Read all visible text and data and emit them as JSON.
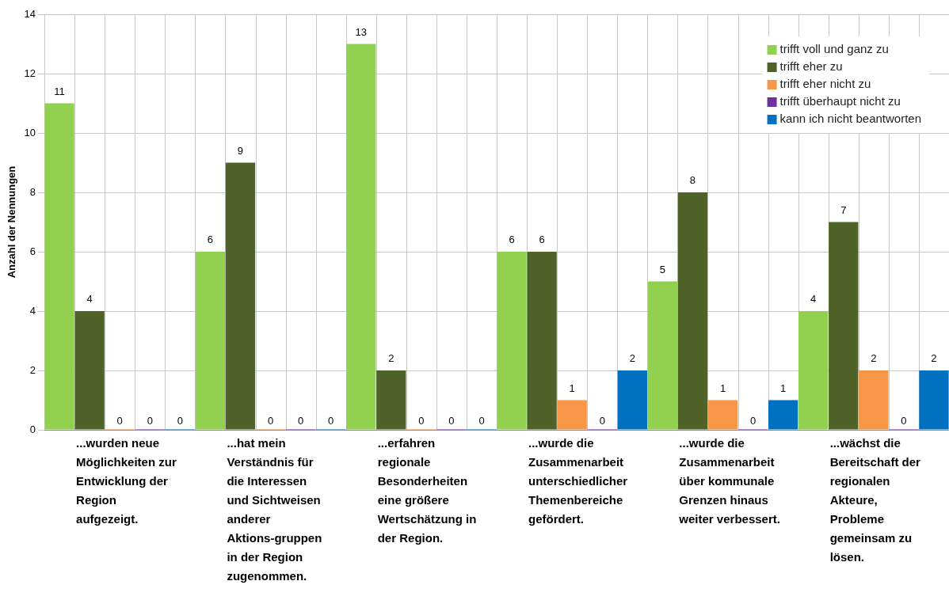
{
  "chart_data": {
    "type": "bar",
    "ylabel": "Anzahl der Nennungen",
    "categories": [
      "...wurden neue Möglichkeiten zur Entwicklung der Region aufgezeigt.",
      "...hat mein Verständnis für die Interessen und Sichtweisen anderer Aktions-gruppen in der Region zugenommen.",
      "...erfahren regionale Besonderheiten eine größere Wertschätzung in der Region.",
      "...wurde die Zusammenarbeit unterschiedlicher Themenbereiche gefördert.",
      "...wurde die Zusammenarbeit über kommunale Grenzen hinaus weiter verbessert.",
      "...wächst die Bereitschaft der regionalen Akteure, Probleme gemeinsam zu lösen."
    ],
    "series": [
      {
        "name": "trifft voll und ganz zu",
        "color": "#92d050",
        "values": [
          11,
          6,
          13,
          6,
          5,
          4
        ]
      },
      {
        "name": "trifft eher zu",
        "color": "#4f6228",
        "values": [
          4,
          9,
          2,
          6,
          8,
          7
        ]
      },
      {
        "name": "trifft eher nicht zu",
        "color": "#f79646",
        "values": [
          0,
          0,
          0,
          1,
          1,
          2
        ]
      },
      {
        "name": "trifft überhaupt nicht zu",
        "color": "#7030a0",
        "values": [
          0,
          0,
          0,
          0,
          0,
          0
        ]
      },
      {
        "name": "kann ich nicht beantworten",
        "color": "#0070c0",
        "values": [
          0,
          0,
          0,
          2,
          1,
          2
        ]
      }
    ],
    "ylim": [
      0,
      14
    ],
    "yticks": [
      0,
      2,
      4,
      6,
      8,
      10,
      12,
      14
    ],
    "grid": true,
    "legend": "top right",
    "data_labels": true
  }
}
